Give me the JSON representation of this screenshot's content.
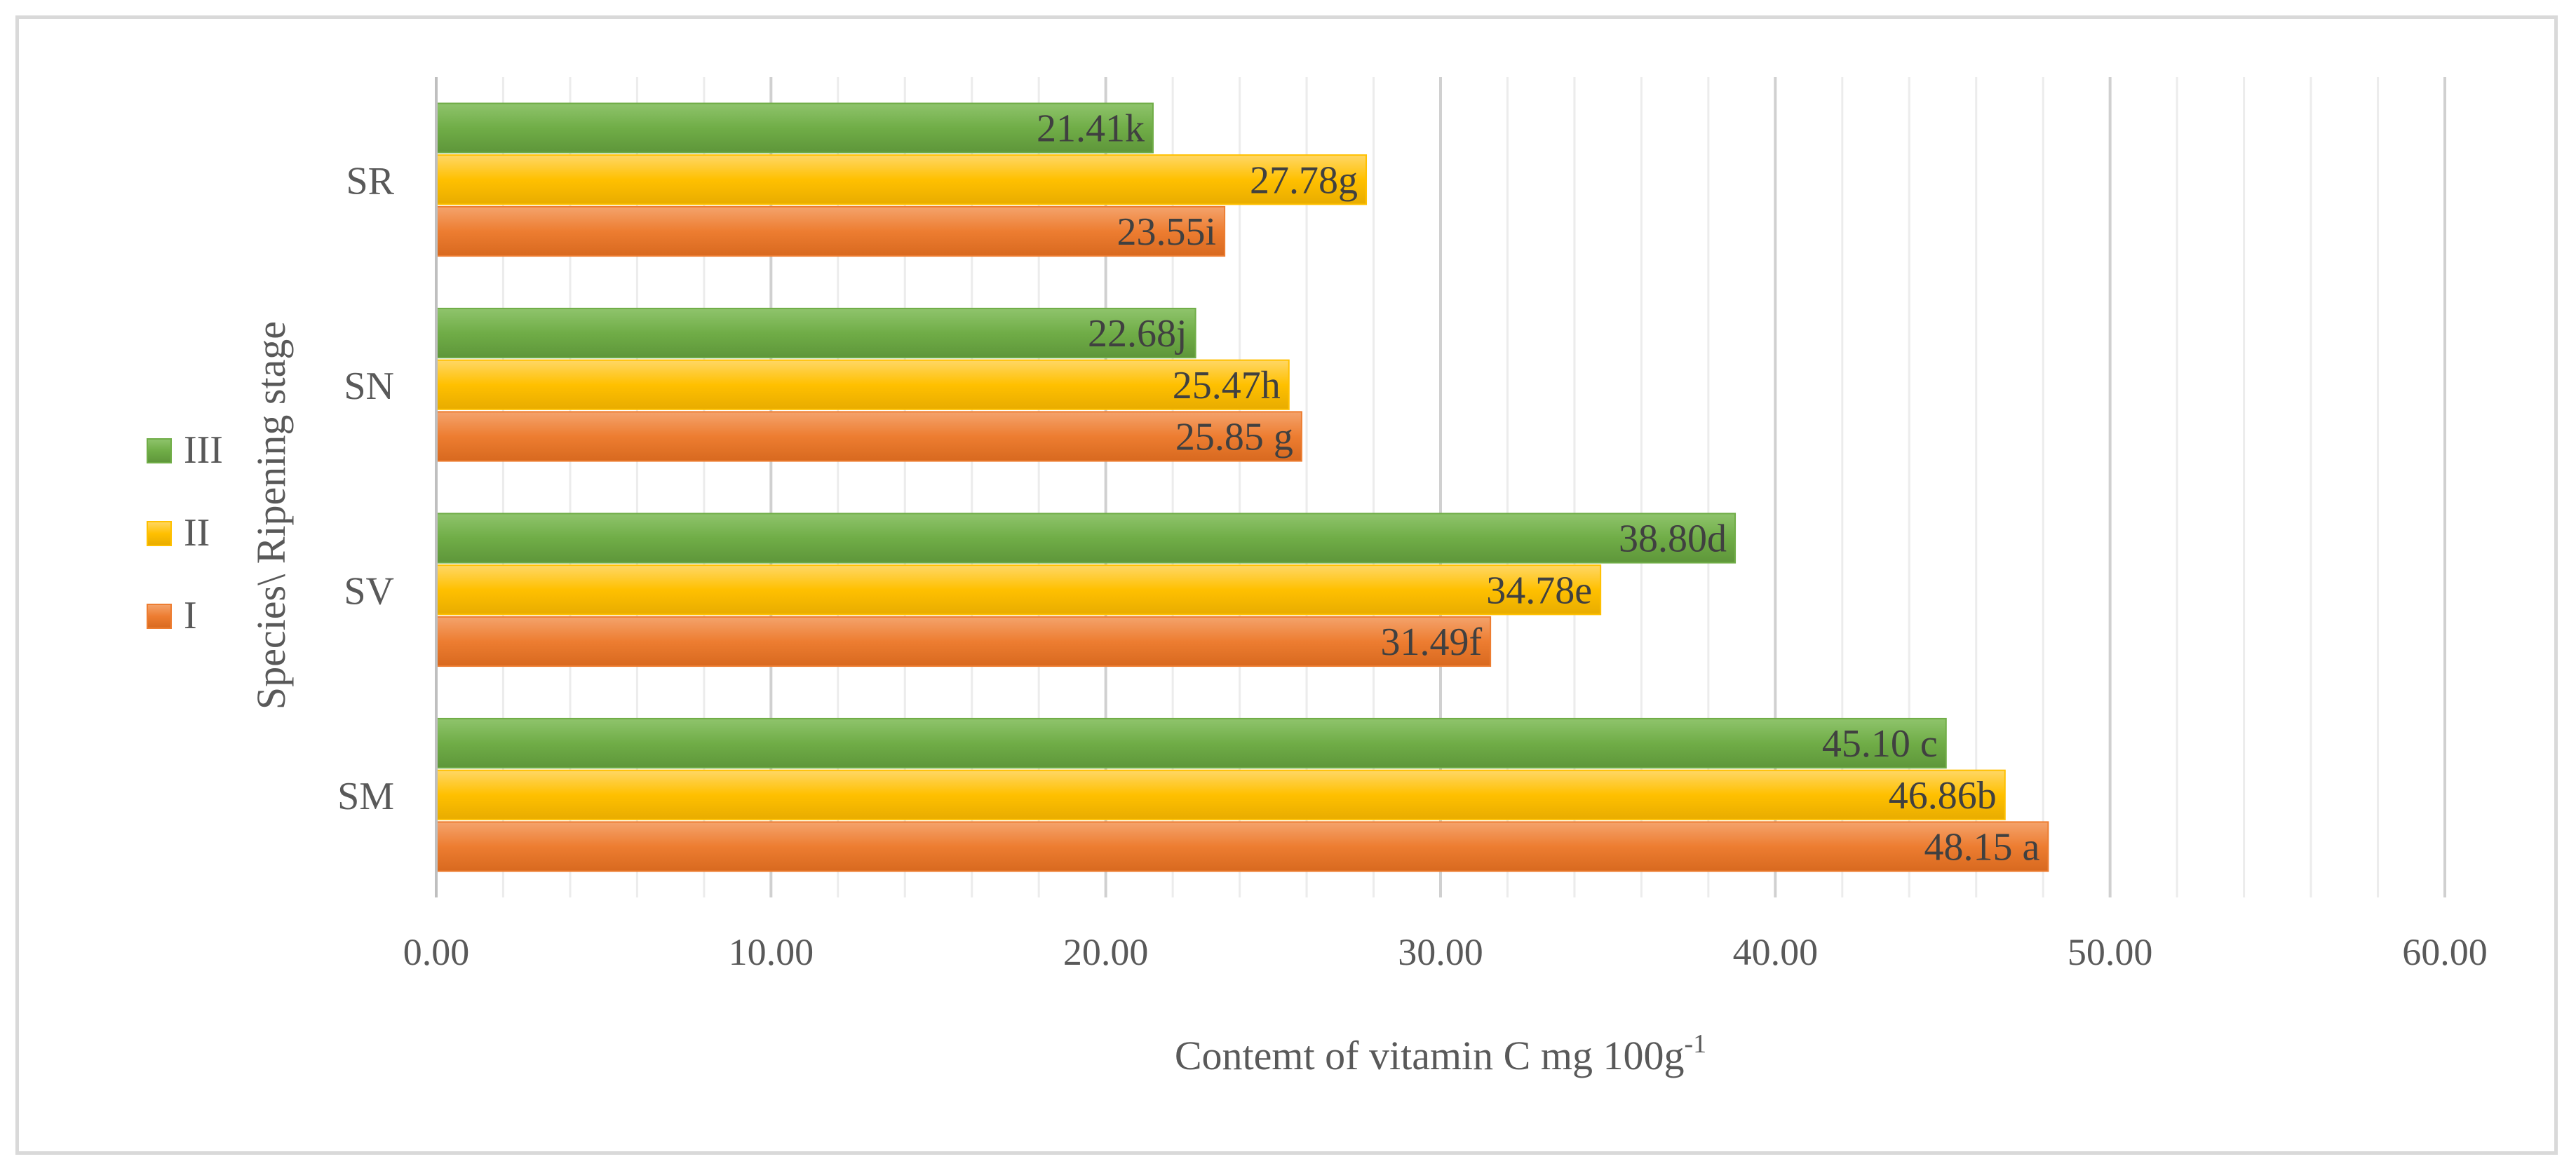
{
  "chart_data": {
    "type": "bar",
    "orientation": "horizontal",
    "categories": [
      "SM",
      "SV",
      "SN",
      "SR"
    ],
    "series": [
      {
        "name": "I",
        "color": "#ed7d31",
        "values": [
          48.15,
          31.49,
          25.85,
          23.55
        ],
        "labels": [
          "48.15 a",
          "31.49f",
          "25.85 g",
          "23.55i"
        ]
      },
      {
        "name": "II",
        "color": "#ffc000",
        "values": [
          46.86,
          34.78,
          25.47,
          27.78
        ],
        "labels": [
          "46.86b",
          "34.78e",
          "25.47h",
          "27.78g"
        ]
      },
      {
        "name": "III",
        "color": "#70ad47",
        "values": [
          45.1,
          38.8,
          22.68,
          21.41
        ],
        "labels": [
          "45.10 c",
          "38.80d",
          "22.68j",
          "21.41k"
        ]
      }
    ],
    "xlabel": "Contemt of vitamin  C mg 100g",
    "xlabel_superscript": "-1",
    "ylabel": "Species\\ Ripening  stage",
    "xlim": [
      0,
      60
    ],
    "xticks": [
      "0.00",
      "10.00",
      "20.00",
      "30.00",
      "40.00",
      "50.00",
      "60.00"
    ],
    "minor_gridlines": true,
    "legend_position": "left",
    "legend_order": [
      "III",
      "II",
      "I"
    ]
  }
}
